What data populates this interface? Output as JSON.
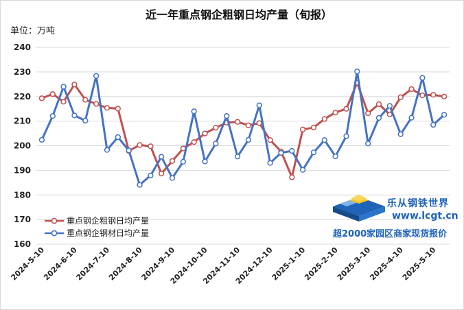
{
  "chart_data": {
    "type": "line",
    "title": "近一年重点钢企粗钢日均产量（旬报）",
    "unit_label": "单位：万吨",
    "ylim": [
      160,
      240
    ],
    "yticks": [
      160,
      170,
      180,
      190,
      200,
      210,
      220,
      230,
      240
    ],
    "grid": "horizontal",
    "legend_position": "bottom-left",
    "x_tick_labels": [
      "2024-5-10",
      "2024-6-10",
      "2024-7-10",
      "2024-8-10",
      "2024-9-10",
      "2024-10-10",
      "2024-11-10",
      "2024-12-10",
      "2025-1-10",
      "2025-2-10",
      "2025-3-10",
      "2025-4-10",
      "2025-5-10"
    ],
    "series": [
      {
        "name": "重点钢企粗钢日均产量",
        "color": "#c0504d",
        "values": [
          219.3,
          221.0,
          217.9,
          224.9,
          218.7,
          217.0,
          215.4,
          215.1,
          197.9,
          200.3,
          199.8,
          188.7,
          193.8,
          198.9,
          201.5,
          205.0,
          207.3,
          209.4,
          209.7,
          208.3,
          209.2,
          202.3,
          197.7,
          187.2,
          206.6,
          207.4,
          210.9,
          213.5,
          215.0,
          225.6,
          213.2,
          216.9,
          212.7,
          219.7,
          223.0,
          220.5,
          220.7,
          220.0
        ]
      },
      {
        "name": "重点钢企钢材日均产量",
        "color": "#4472c4",
        "values": [
          202.4,
          212.1,
          224.0,
          212.3,
          210.2,
          228.4,
          198.3,
          203.5,
          198.1,
          184.1,
          187.9,
          195.5,
          186.9,
          193.5,
          214.0,
          193.6,
          200.9,
          212.1,
          195.6,
          202.4,
          216.4,
          193.0,
          197.1,
          197.9,
          190.2,
          197.3,
          202.3,
          195.7,
          203.9,
          230.2,
          200.9,
          211.3,
          216.2,
          204.7,
          211.4,
          227.6,
          208.5,
          212.6
        ]
      }
    ]
  },
  "brand": {
    "name": "乐从钢铁世界",
    "url": "www.lcgt.cn",
    "slogan": "超2000家园区商家现货报价",
    "colors": [
      "#1e63b8",
      "#7fb3e8",
      "#f4c21f"
    ]
  }
}
